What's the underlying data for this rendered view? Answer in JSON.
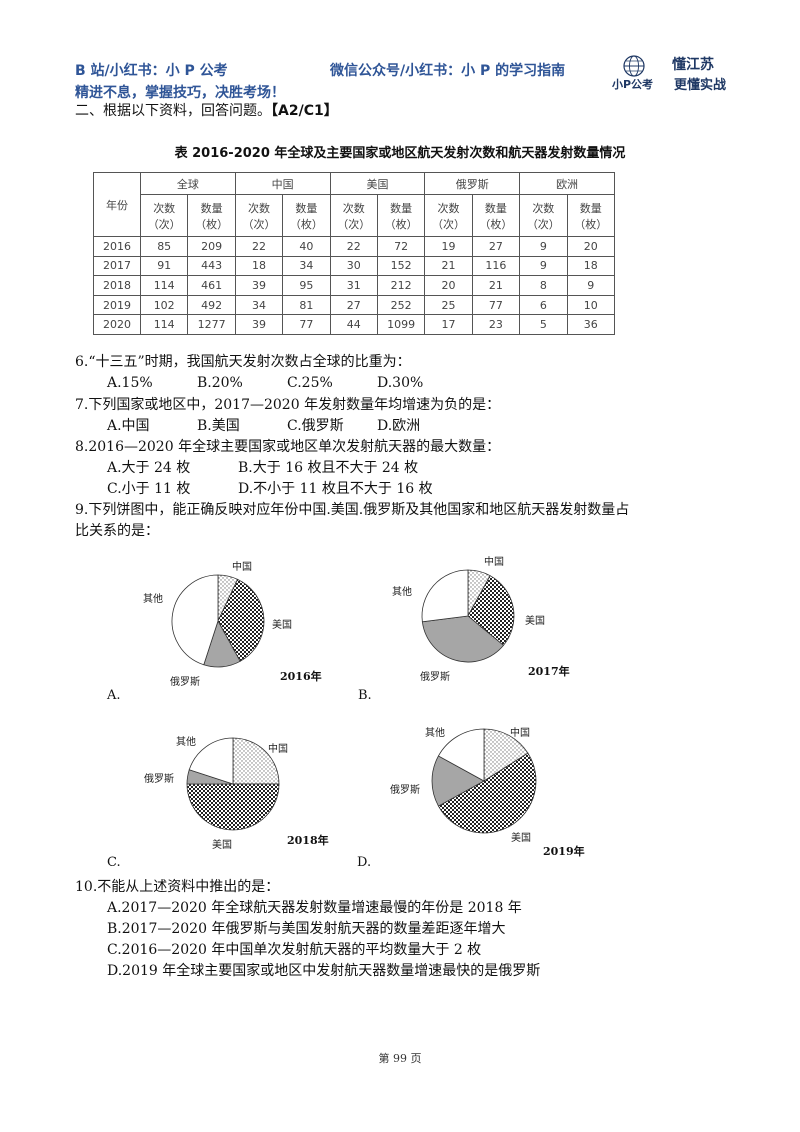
{
  "header": {
    "left": "B 站/小红书：小 P 公考",
    "middle": "微信公众号/小红书：小 P 的学习指南",
    "slogan": "精进不息，掌握技巧，决胜考场！",
    "logo_top": "懂江苏",
    "logo_bottom_left": "小P公考",
    "logo_bottom_right": "更懂实战"
  },
  "section": {
    "text": "二、根据以下资料，回答问题。",
    "tag": "【A2/C1】"
  },
  "table": {
    "title": "表 2016-2020 年全球及主要国家或地区航天发射次数和航天器发射数量情况",
    "year_header": "年份",
    "regions": [
      "全球",
      "中国",
      "美国",
      "俄罗斯",
      "欧洲"
    ],
    "sub_headers": [
      [
        "次数",
        "（次）"
      ],
      [
        "数量",
        "（枚）"
      ]
    ],
    "rows": [
      {
        "year": "2016",
        "values": [
          "85",
          "209",
          "22",
          "40",
          "22",
          "72",
          "19",
          "27",
          "9",
          "20"
        ]
      },
      {
        "year": "2017",
        "values": [
          "91",
          "443",
          "18",
          "34",
          "30",
          "152",
          "21",
          "116",
          "9",
          "18"
        ]
      },
      {
        "year": "2018",
        "values": [
          "114",
          "461",
          "39",
          "95",
          "31",
          "212",
          "20",
          "21",
          "8",
          "9"
        ]
      },
      {
        "year": "2019",
        "values": [
          "102",
          "492",
          "34",
          "81",
          "27",
          "252",
          "25",
          "77",
          "6",
          "10"
        ]
      },
      {
        "year": "2020",
        "values": [
          "114",
          "1277",
          "39",
          "77",
          "44",
          "1099",
          "17",
          "23",
          "5",
          "36"
        ]
      }
    ]
  },
  "questions": {
    "q6": {
      "text": "6.“十三五”时期，我国航天发射次数占全球的比重为：",
      "options": [
        "A.15%",
        "B.20%",
        "C.25%",
        "D.30%"
      ]
    },
    "q7": {
      "text": "7.下列国家或地区中，2017—2020 年发射数量年均增速为负的是：",
      "options": [
        "A.中国",
        "B.美国",
        "C.俄罗斯",
        "D.欧洲"
      ]
    },
    "q8": {
      "text": "8.2016—2020 年全球主要国家或地区单次发射航天器的最大数量：",
      "options": [
        "A.大于 24 枚",
        "B.大于 16 枚且不大于 24 枚",
        "C.小于 11 枚",
        "D.不小于 11 枚且不大于 16 枚"
      ]
    },
    "q9": {
      "line1": "9.下列饼图中，能正确反映对应年份中国.美国.俄罗斯及其他国家和地区航天器发射数量占",
      "line2": "比关系的是："
    },
    "q10": {
      "text": "10.不能从上述资料中推出的是：",
      "options": [
        "A.2017—2020 年全球航天器发射数量增速最慢的年份是 2018 年",
        "B.2017—2020 年俄罗斯与美国发射航天器的数量差距逐年增大",
        "C.2016—2020 年中国单次发射航天器的平均数量大于 2 枚",
        "D.2019 年全球主要国家或地区中发射航天器数量增速最快的是俄罗斯"
      ]
    }
  },
  "pies": [
    {
      "letter": "A.",
      "year": "2016年",
      "labels": {
        "china": "中国",
        "us": "美国",
        "russia": "俄罗斯",
        "other": "其他"
      },
      "slices": [
        {
          "key": "china",
          "value": 0.07
        },
        {
          "key": "us",
          "value": 0.35
        },
        {
          "key": "russia",
          "value": 0.13
        },
        {
          "key": "other",
          "value": 0.45
        }
      ]
    },
    {
      "letter": "B.",
      "year": "2017年",
      "labels": {
        "china": "中国",
        "us": "美国",
        "russia": "俄罗斯",
        "other": "其他"
      },
      "slices": [
        {
          "key": "china",
          "value": 0.08
        },
        {
          "key": "us",
          "value": 0.28
        },
        {
          "key": "russia",
          "value": 0.37
        },
        {
          "key": "other",
          "value": 0.27
        }
      ]
    },
    {
      "letter": "C.",
      "year": "2018年",
      "labels": {
        "china": "中国",
        "us": "美国",
        "russia": "俄罗斯",
        "other": "其他"
      },
      "slices": [
        {
          "key": "china",
          "value": 0.25
        },
        {
          "key": "us",
          "value": 0.5
        },
        {
          "key": "russia",
          "value": 0.05
        },
        {
          "key": "other",
          "value": 0.2
        }
      ]
    },
    {
      "letter": "D.",
      "year": "2019年",
      "labels": {
        "china": "中国",
        "us": "美国",
        "russia": "俄罗斯",
        "other": "其他"
      },
      "slices": [
        {
          "key": "china",
          "value": 0.16
        },
        {
          "key": "us",
          "value": 0.51
        },
        {
          "key": "russia",
          "value": 0.16
        },
        {
          "key": "other",
          "value": 0.17
        }
      ]
    }
  ],
  "footer": {
    "page": "第 99 页"
  },
  "colors": {
    "header_blue": "#2f5597",
    "logo_navy": "#1f3864"
  }
}
